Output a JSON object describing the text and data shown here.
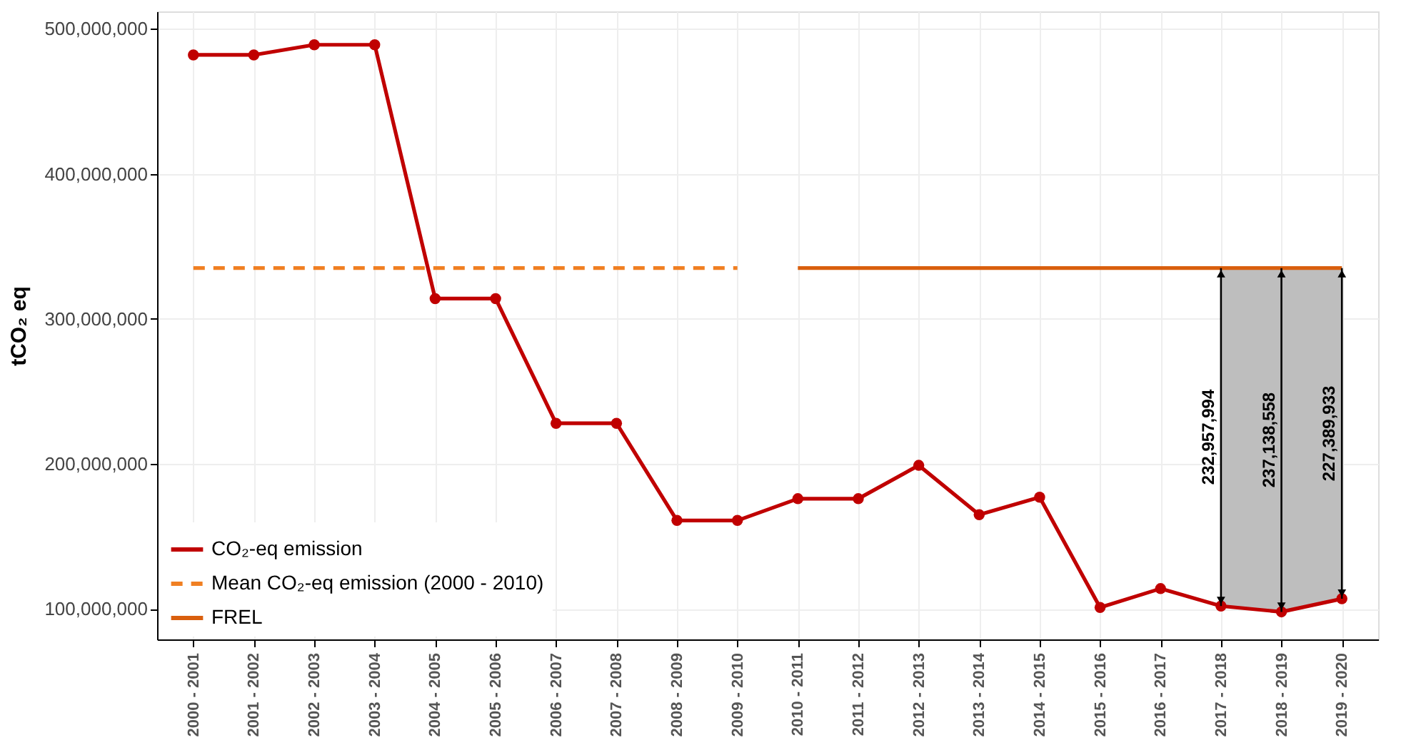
{
  "chart_data": {
    "type": "line",
    "ylabel": "tCO₂ eq",
    "categories": [
      "2000 - 2001",
      "2001 - 2002",
      "2002 - 2003",
      "2003 - 2004",
      "2004 - 2005",
      "2005 - 2006",
      "2006 - 2007",
      "2007 - 2008",
      "2008 - 2009",
      "2009 - 2010",
      "2010 - 2011",
      "2011 - 2012",
      "2012 - 2013",
      "2013 - 2014",
      "2014 - 2015",
      "2015 - 2016",
      "2016 - 2017",
      "2017 - 2018",
      "2018 - 2019",
      "2019 - 2020"
    ],
    "series": [
      {
        "name": "CO₂-eq emission",
        "color": "#c00000",
        "marker": "circle",
        "line_style": "solid",
        "values": [
          482000000,
          482000000,
          489000000,
          489000000,
          314000000,
          314000000,
          228000000,
          228000000,
          161000000,
          161000000,
          176000000,
          176000000,
          199000000,
          165000000,
          177000000,
          101000000,
          114000000,
          102000000,
          98000000,
          107000000
        ]
      },
      {
        "name": "Mean CO₂-eq emission (2000 - 2010)",
        "color": "#f07f22",
        "marker": "none",
        "line_style": "dashed",
        "values": [
          335000000,
          335000000,
          335000000,
          335000000,
          335000000,
          335000000,
          335000000,
          335000000,
          335000000,
          335000000,
          null,
          null,
          null,
          null,
          null,
          null,
          null,
          null,
          null,
          null
        ]
      },
      {
        "name": "FREL",
        "color": "#d95f0e",
        "marker": "none",
        "line_style": "solid",
        "values": [
          null,
          null,
          null,
          null,
          null,
          null,
          null,
          null,
          null,
          null,
          335000000,
          335000000,
          335000000,
          335000000,
          335000000,
          335000000,
          335000000,
          335000000,
          335000000,
          335000000
        ],
        "lower": [
          null,
          null,
          null,
          null,
          null,
          null,
          null,
          null,
          null,
          null,
          null,
          null,
          null,
          null,
          null,
          null,
          null,
          102000000,
          98000000,
          107000000
        ],
        "upper": [
          null,
          null,
          null,
          null,
          null,
          null,
          null,
          null,
          null,
          null,
          null,
          null,
          null,
          null,
          null,
          null,
          null,
          335000000,
          335000000,
          335000000
        ]
      }
    ],
    "annotations": [
      "232,957,994",
      "237,138,558",
      "227,389,933"
    ],
    "ylim": [
      79000000,
      512000000
    ],
    "yticks": [
      {
        "value": 100000000,
        "label": "100,000,000"
      },
      {
        "value": 200000000,
        "label": "200,000,000"
      },
      {
        "value": 300000000,
        "label": "300,000,000"
      },
      {
        "value": 400000000,
        "label": "400,000,000"
      },
      {
        "value": 500000000,
        "label": "500,000,000"
      }
    ],
    "grid": true,
    "legend": "bottom left"
  }
}
